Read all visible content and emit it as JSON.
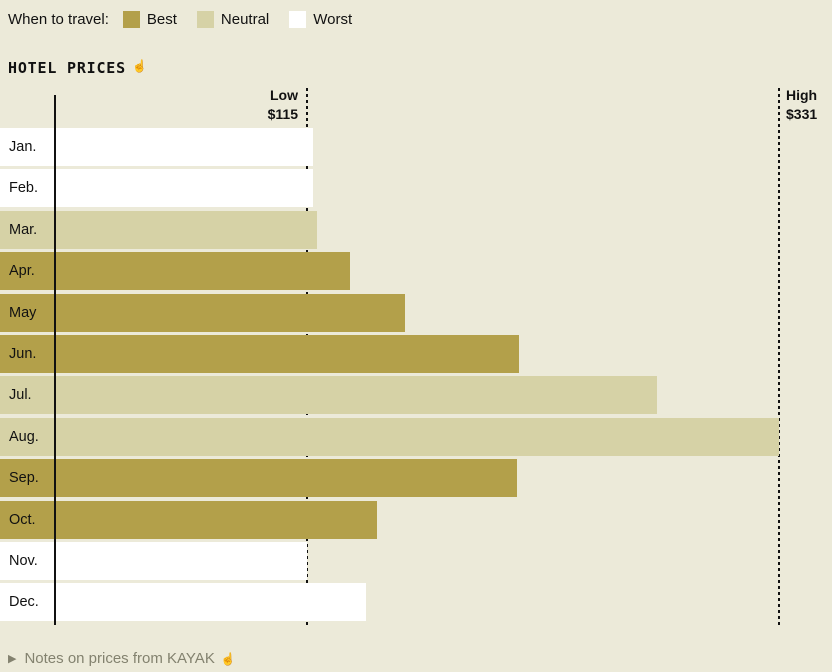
{
  "page": {
    "background": "#ecead9"
  },
  "legend": {
    "label": "When to travel:",
    "items": [
      {
        "label": "Best",
        "color": "#b3a04a"
      },
      {
        "label": "Neutral",
        "color": "#d6d2a6"
      },
      {
        "label": "Worst",
        "color": "#ffffff"
      }
    ]
  },
  "header": {
    "title": "HOTEL PRICES",
    "pointer_icon": "☝"
  },
  "chart_data": {
    "type": "bar",
    "orientation": "horizontal",
    "title": "HOTEL PRICES",
    "categories": [
      "Jan.",
      "Feb.",
      "Mar.",
      "Apr.",
      "May",
      "Jun.",
      "Jul.",
      "Aug.",
      "Sep.",
      "Oct.",
      "Nov.",
      "Dec."
    ],
    "values": [
      118,
      118,
      120,
      135,
      160,
      212,
      275,
      331,
      211,
      147,
      115,
      142
    ],
    "ratings": [
      "worst",
      "worst",
      "neutral",
      "best",
      "best",
      "best",
      "neutral",
      "neutral",
      "best",
      "best",
      "worst",
      "worst"
    ],
    "unit": "$",
    "xlim": [
      0,
      331
    ],
    "grid": false,
    "legend_position": "top",
    "markers": {
      "low": {
        "label": "Low",
        "value_label": "$115",
        "value": 115
      },
      "high": {
        "label": "High",
        "value_label": "$331",
        "value": 331
      }
    },
    "colors": {
      "best": "#b3a04a",
      "neutral": "#d6d2a6",
      "worst": "#ffffff"
    }
  },
  "footer": {
    "bullet": "▶",
    "text": "Notes on prices from KAYAK",
    "pointer_icon": "☝"
  }
}
